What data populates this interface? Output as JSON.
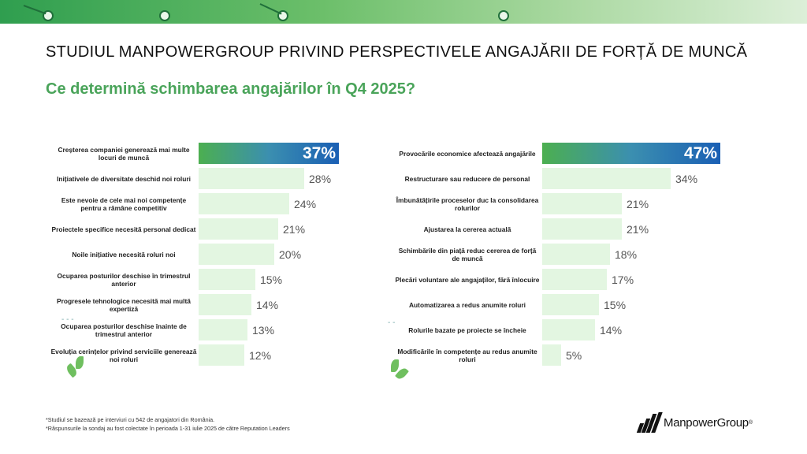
{
  "header": {
    "title": "STUDIUL MANPOWERGROUP PRIVIND PERSPECTIVELE ANGAJĂRII DE FORȚĂ DE MUNCĂ",
    "subtitle": "Ce determină schimbarea angajărilor în Q4 2025?"
  },
  "colors": {
    "accent_green": "#4aa45a",
    "highlight_blue": "#1a5fb4",
    "bar_light": "#e3f6e1"
  },
  "chart_data": [
    {
      "type": "bar",
      "orientation": "horizontal",
      "categories": [
        "Creșterea companiei generează mai multe locuri de muncă",
        "Inițiativele de diversitate deschid noi roluri",
        "Este nevoie de cele mai noi competențe pentru a rămâne competitiv",
        "Proiectele specifice necesită personal dedicat",
        "Noile inițiative necesită roluri noi",
        "Ocuparea posturilor deschise în trimestrul anterior",
        "Progresele tehnologice necesită mai multă expertiză",
        "Ocuparea posturilor deschise înainte de trimestrul anterior",
        "Evoluția cerințelor privind serviciile generează noi roluri"
      ],
      "values": [
        37,
        28,
        24,
        21,
        20,
        15,
        14,
        13,
        12
      ],
      "value_labels": [
        "37%",
        "28%",
        "24%",
        "21%",
        "20%",
        "15%",
        "14%",
        "13%",
        "12%"
      ],
      "highlight_index": 0,
      "xlim": [
        0,
        50
      ]
    },
    {
      "type": "bar",
      "orientation": "horizontal",
      "categories": [
        "Provocările economice afectează angajările",
        "Restructurare sau reducere de personal",
        "Îmbunătățirile proceselor duc la consolidarea rolurilor",
        "Ajustarea la cererea actuală",
        "Schimbările din piață reduc cererea de forță de muncă",
        "Plecări voluntare ale angajaților, fără înlocuire",
        "Automatizarea a redus anumite roluri",
        "Rolurile bazate pe proiecte se încheie",
        "Modificările în competențe au redus anumite roluri"
      ],
      "values": [
        47,
        34,
        21,
        21,
        18,
        17,
        15,
        14,
        5
      ],
      "value_labels": [
        "47%",
        "34%",
        "21%",
        "21%",
        "18%",
        "17%",
        "15%",
        "14%",
        "5%"
      ],
      "highlight_index": 0,
      "xlim": [
        0,
        50
      ]
    }
  ],
  "footnotes": [
    "*Studiul se bazează pe interviuri cu 542 de angajatori din România.",
    "*Răspunsurile la sondaj au fost colectate în perioada 1-31 iulie 2025 de către Reputation Leaders"
  ],
  "logo": {
    "text": "ManpowerGroup",
    "mark_suffix": "®"
  }
}
